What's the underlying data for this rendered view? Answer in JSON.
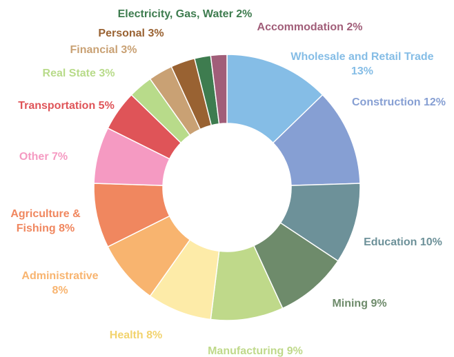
{
  "chart_data": {
    "type": "donut",
    "categories": [
      "Wholesale and Retail Trade",
      "Construction",
      "Education",
      "Mining",
      "Manufacturing",
      "Health",
      "Administrative",
      "Agriculture & Fishing",
      "Other",
      "Transportation",
      "Real State",
      "Financial",
      "Personal",
      "Electricity, Gas, Water",
      "Accommodation"
    ],
    "values": [
      13,
      12,
      10,
      9,
      9,
      8,
      8,
      8,
      7,
      5,
      3,
      3,
      3,
      2,
      2
    ],
    "value_labels": [
      "13%",
      "12%",
      "10%",
      "9%",
      "9%",
      "8%",
      "8%",
      "8%",
      "7%",
      "5%",
      "3%",
      "3%",
      "3%",
      "2%",
      "2%"
    ],
    "colors": [
      "#85bde6",
      "#869fd3",
      "#6d9199",
      "#6e8b6b",
      "#bfd98a",
      "#fdeba8",
      "#f8b46f",
      "#f0875f",
      "#f59ac2",
      "#df5458",
      "#b8db8a",
      "#c9a174",
      "#996232",
      "#3e7c4f",
      "#a15e79"
    ]
  }
}
